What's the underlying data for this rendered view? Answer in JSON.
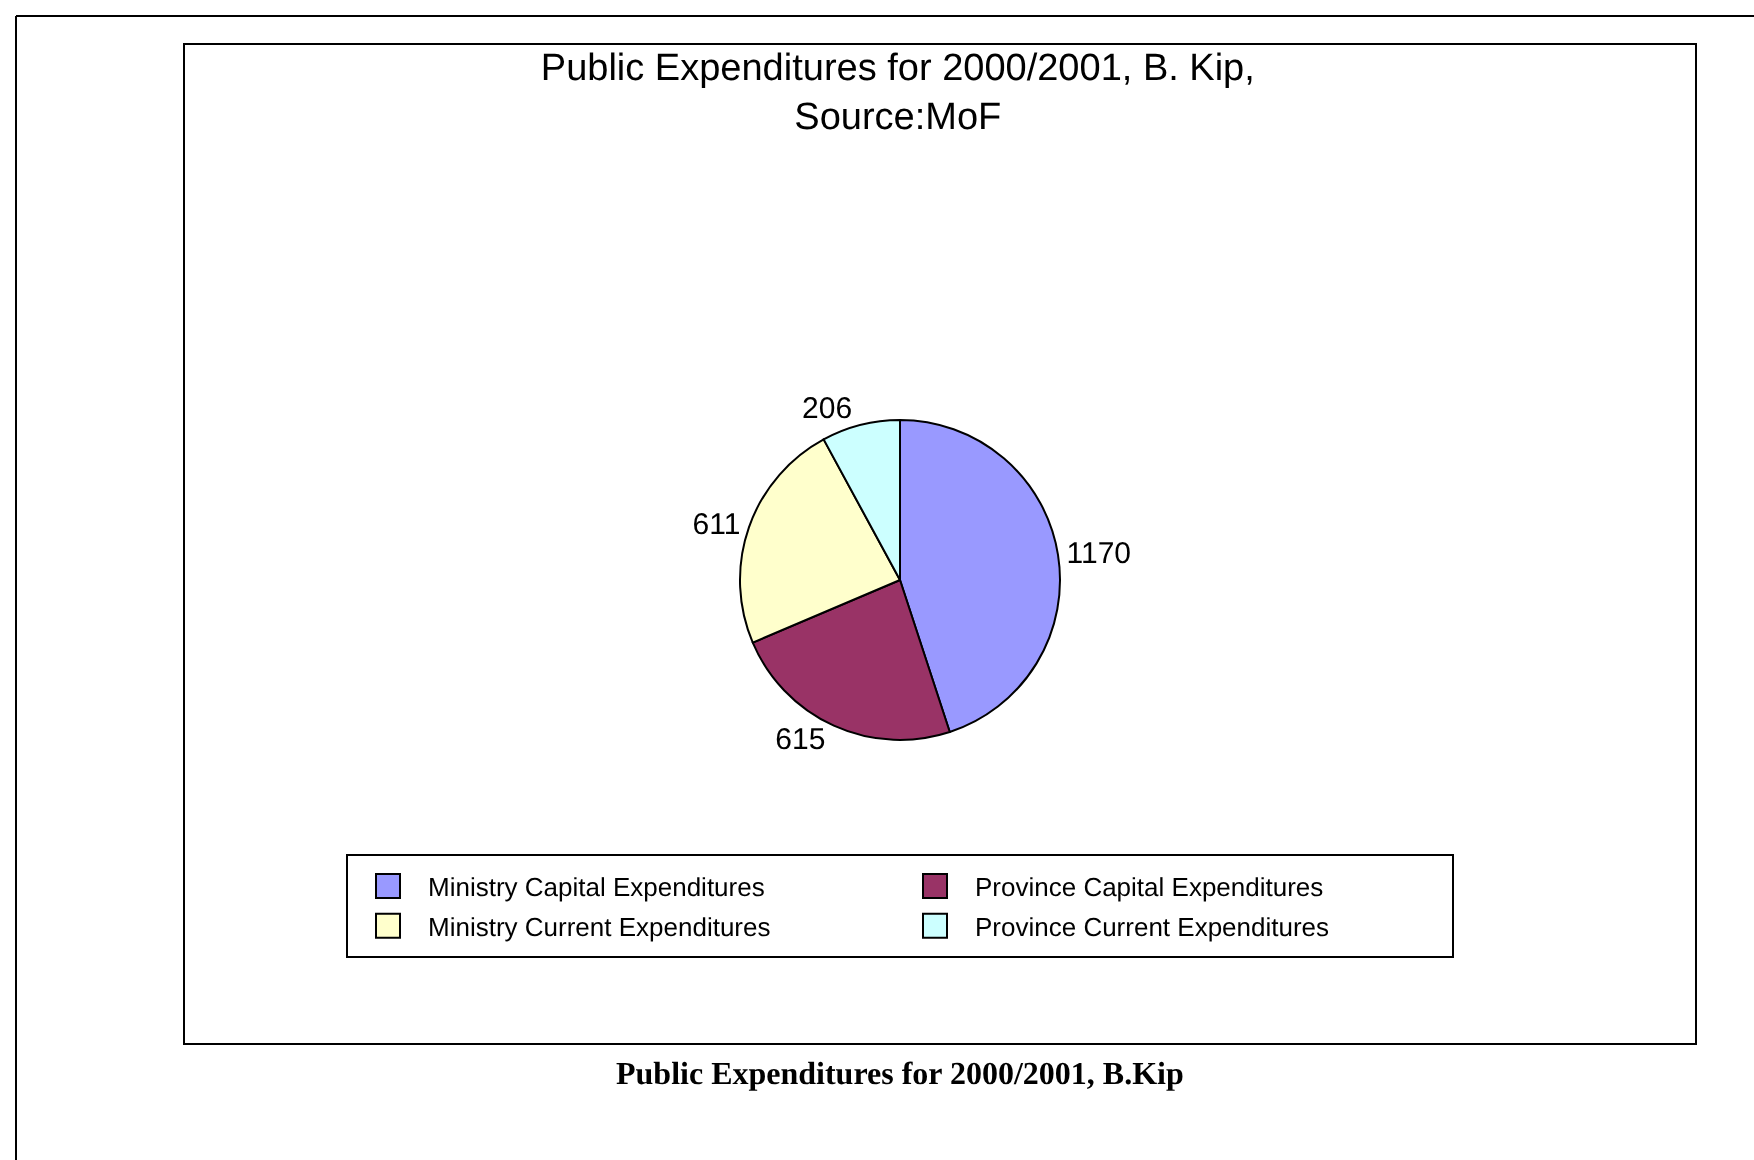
{
  "chart_data": {
    "type": "pie",
    "title": "Public Expenditures for 2000/2001, B. Kip, Source:MoF",
    "categories": [
      "Ministry Capital Expenditures",
      "Province Capital Expenditures",
      "Ministry Current Expenditures",
      "Province Current Expenditures"
    ],
    "values": [
      1170,
      615,
      611,
      206
    ],
    "colors": [
      "#9999ff",
      "#993366",
      "#ffffcc",
      "#ccffff"
    ],
    "data_labels": true,
    "legend": "bottom",
    "annotations": [
      "Public Expenditures for 2000/2001, B.Kip"
    ]
  }
}
